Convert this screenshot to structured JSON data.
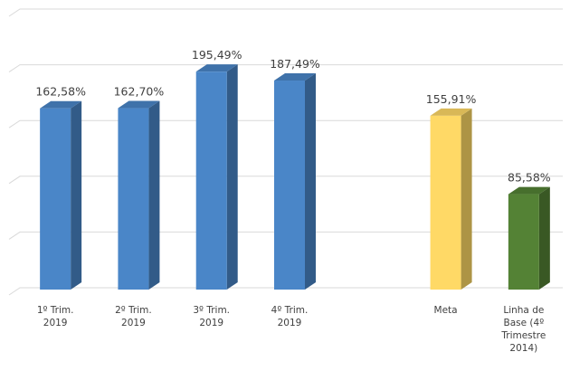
{
  "chart_data": {
    "type": "bar3d",
    "categories": [
      "1º Trim. 2019",
      "2º Trim. 2019",
      "3º Trim. 2019",
      "4º Trim. 2019",
      null,
      "Meta",
      "Linha de Base (4º Trimestre 2014)"
    ],
    "values": [
      162.58,
      162.7,
      195.49,
      187.49,
      null,
      155.91,
      85.58
    ],
    "value_labels": [
      "162,58%",
      "162,70%",
      "195,49%",
      "187,49%",
      null,
      "155,91%",
      "85,58%"
    ],
    "colors": [
      "#4a86c8",
      "#4a86c8",
      "#4a86c8",
      "#4a86c8",
      null,
      "#ffd966",
      "#548235"
    ],
    "ylim": [
      0,
      250
    ],
    "yticks": [
      0,
      50,
      100,
      150,
      200,
      250
    ],
    "grid": true
  }
}
